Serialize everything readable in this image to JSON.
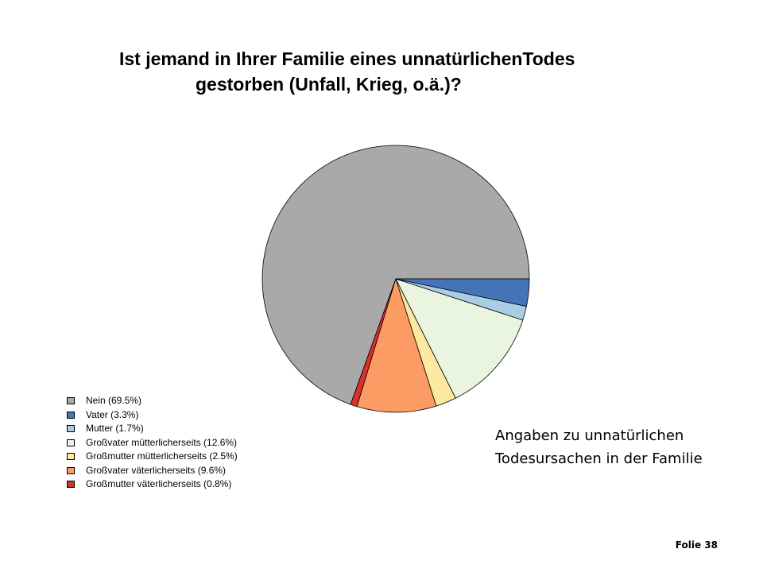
{
  "title": {
    "line1": "Ist jemand in Ihrer Familie eines unnatürlichenTodes",
    "line2": "gestorben (Unfall, Krieg, o.ä.)?"
  },
  "chart_data": {
    "type": "pie",
    "title": "Ist jemand in Ihrer Familie eines unnatürlichenTodes gestorben (Unfall, Krieg, o.ä.)?",
    "slices": [
      {
        "label": "Nein (69.5%)",
        "value": 69.5,
        "color": "#a9a9a9"
      },
      {
        "label": "Großmutter väterlicherseits (0.8%)",
        "value": 0.8,
        "color": "#d7312b"
      },
      {
        "label": "Großvater väterlicherseits (9.6%)",
        "value": 9.6,
        "color": "#fc9c64"
      },
      {
        "label": "Großmutter mütterlicherseits (2.5%)",
        "value": 2.5,
        "color": "#fde9a2"
      },
      {
        "label": "Großvater mütterlicherseits (12.6%)",
        "value": 12.6,
        "color": "#eaf5df"
      },
      {
        "label": "Mutter (1.7%)",
        "value": 1.7,
        "color": "#a8cde4"
      },
      {
        "label": "Vater (3.3%)",
        "value": 3.3,
        "color": "#4574b8"
      }
    ],
    "legend_position": "bottom-left"
  },
  "legend": [
    {
      "label": "Nein (69.5%)",
      "color": "#a9a9a9"
    },
    {
      "label": "Vater (3.3%)",
      "color": "#4574b8"
    },
    {
      "label": "Mutter (1.7%)",
      "color": "#a8cde4"
    },
    {
      "label": "Großvater mütterlicherseits (12.6%)",
      "color": "#eaf5df"
    },
    {
      "label": "Großmutter mütterlicherseits (2.5%)",
      "color": "#fde9a2"
    },
    {
      "label": "Großvater väterlicherseits (9.6%)",
      "color": "#fc9c64"
    },
    {
      "label": "Großmutter väterlicherseits (0.8%)",
      "color": "#d7312b"
    }
  ],
  "note": {
    "line1": "Angaben zu unnatürlichen",
    "line2": "Todesursachen in der Familie"
  },
  "slide_number": "Folie 38"
}
